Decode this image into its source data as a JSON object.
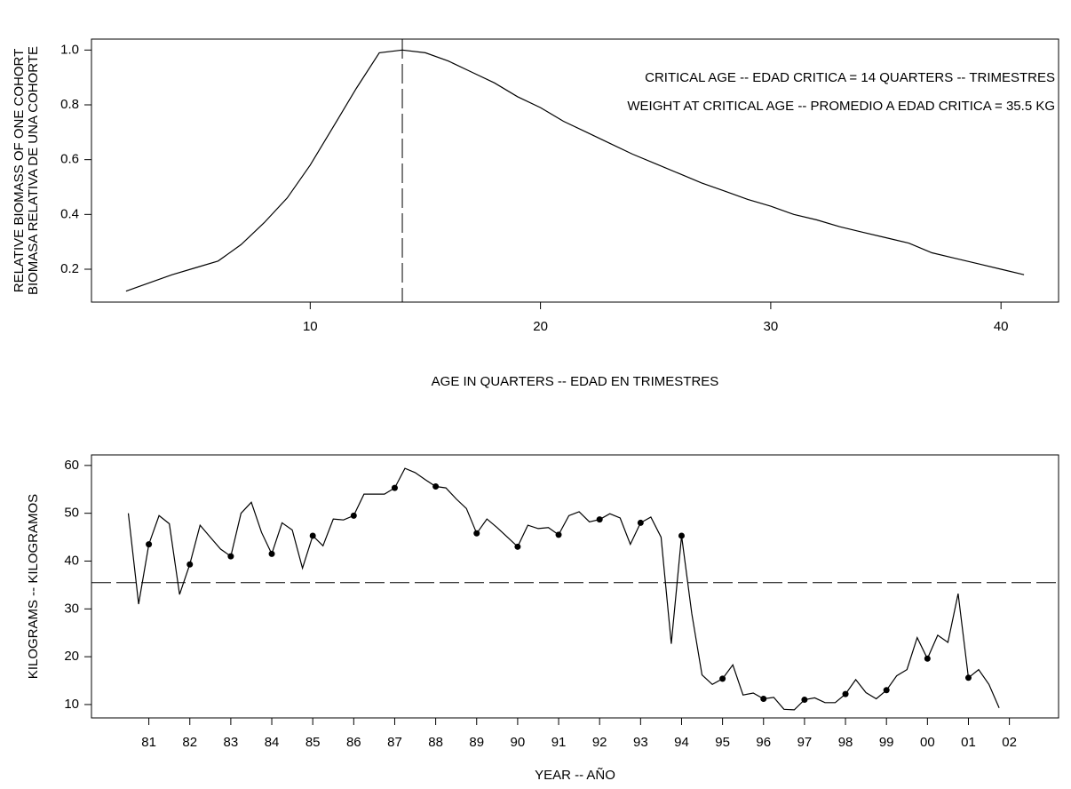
{
  "chart_data": [
    {
      "type": "line",
      "ylabel": [
        "RELATIVE BIOMASS OF ONE COHORT",
        "BIOMASA RELATIVA DE UNA COHORTE"
      ],
      "xlabel": "AGE IN QUARTERS -- EDAD EN TRIMESTRES",
      "annotations": [
        "CRITICAL AGE -- EDAD CRITICA = 14 QUARTERS -- TRIMESTRES",
        "WEIGHT AT CRITICAL AGE -- PROMEDIO A EDAD CRITICA = 35.5 KG"
      ],
      "xlim": [
        0.5,
        42.5
      ],
      "ylim": [
        0.08,
        1.04
      ],
      "xticks": [
        10,
        20,
        30,
        40
      ],
      "yticks": [
        0.2,
        0.4,
        0.6,
        0.8,
        {
          "value": 1,
          "label": "1.0"
        }
      ],
      "vline": 14,
      "color": "#000000",
      "series": [
        {
          "color": "#000000",
          "x": [
            2,
            3,
            4,
            5,
            6,
            7,
            8,
            9,
            10,
            11,
            12,
            13,
            14,
            15,
            16,
            17,
            18,
            19,
            20,
            21,
            22,
            23,
            24,
            25,
            26,
            27,
            28,
            29,
            30,
            31,
            32,
            33,
            34,
            35,
            36,
            37,
            38,
            39,
            40,
            41
          ],
          "values": [
            0.12,
            0.15,
            0.18,
            0.205,
            0.23,
            0.29,
            0.37,
            0.46,
            0.58,
            0.72,
            0.86,
            0.99,
            1.0,
            0.99,
            0.96,
            0.92,
            0.88,
            0.83,
            0.79,
            0.74,
            0.7,
            0.66,
            0.62,
            0.585,
            0.55,
            0.515,
            0.485,
            0.455,
            0.43,
            0.4,
            0.38,
            0.355,
            0.335,
            0.315,
            0.295,
            0.26,
            0.24,
            0.22,
            0.2,
            0.18
          ]
        }
      ]
    },
    {
      "type": "line",
      "ylabel": [
        "KILOGRAMS -- KILOGRAMOS"
      ],
      "xlabel": "YEAR -- AÑO",
      "xlim": [
        1979.6,
        2003.2
      ],
      "ylim": [
        7.2,
        62.2
      ],
      "xticks": [
        {
          "value": 1981,
          "label": "81"
        },
        {
          "value": 1982,
          "label": "82"
        },
        {
          "value": 1983,
          "label": "83"
        },
        {
          "value": 1984,
          "label": "84"
        },
        {
          "value": 1985,
          "label": "85"
        },
        {
          "value": 1986,
          "label": "86"
        },
        {
          "value": 1987,
          "label": "87"
        },
        {
          "value": 1988,
          "label": "88"
        },
        {
          "value": 1989,
          "label": "89"
        },
        {
          "value": 1990,
          "label": "90"
        },
        {
          "value": 1991,
          "label": "91"
        },
        {
          "value": 1992,
          "label": "92"
        },
        {
          "value": 1993,
          "label": "93"
        },
        {
          "value": 1994,
          "label": "94"
        },
        {
          "value": 1995,
          "label": "95"
        },
        {
          "value": 1996,
          "label": "96"
        },
        {
          "value": 1997,
          "label": "97"
        },
        {
          "value": 1998,
          "label": "98"
        },
        {
          "value": 1999,
          "label": "99"
        },
        {
          "value": 2000,
          "label": "00"
        },
        {
          "value": 2001,
          "label": "01"
        },
        {
          "value": 2002,
          "label": "02"
        }
      ],
      "yticks": [
        10,
        20,
        30,
        40,
        50,
        60
      ],
      "hline": 35.5,
      "series": [
        {
          "color": "#000000",
          "style": "line",
          "x": [
            1980.5,
            1980.75,
            1981,
            1981.25,
            1981.5,
            1981.75,
            1982,
            1982.25,
            1982.5,
            1982.75,
            1983,
            1983.25,
            1983.5,
            1983.75,
            1984,
            1984.25,
            1984.5,
            1984.75,
            1985,
            1985.25,
            1985.5,
            1985.75,
            1986,
            1986.25,
            1986.5,
            1986.75,
            1987,
            1987.25,
            1987.5,
            1987.75,
            1988,
            1988.25,
            1988.5,
            1988.75,
            1989,
            1989.25,
            1989.5,
            1989.75,
            1990,
            1990.25,
            1990.5,
            1990.75,
            1991,
            1991.25,
            1991.5,
            1991.75,
            1992,
            1992.25,
            1992.5,
            1992.75,
            1993,
            1993.25,
            1993.5,
            1993.75,
            1994,
            1994.25,
            1994.5,
            1994.75,
            1995,
            1995.25,
            1995.5,
            1995.75,
            1996,
            1996.25,
            1996.5,
            1996.75,
            1997,
            1997.25,
            1997.5,
            1997.75,
            1998,
            1998.25,
            1998.5,
            1998.75,
            1999,
            1999.25,
            1999.5,
            1999.75,
            2000,
            2000.25,
            2000.5,
            2000.75,
            2001,
            2001.25,
            2001.5,
            2001.75
          ],
          "values": [
            50,
            31,
            43.5,
            49.5,
            47.8,
            33,
            39.3,
            47.5,
            45,
            42.5,
            41,
            50,
            52.3,
            46,
            41.5,
            48,
            46.5,
            38.5,
            45.3,
            43.2,
            48.8,
            48.6,
            49.5,
            54,
            54,
            54,
            55.3,
            59.4,
            58.5,
            57,
            55.6,
            55.3,
            53,
            51,
            45.8,
            48.8,
            47,
            45,
            43,
            47.5,
            46.8,
            47,
            45.5,
            49.5,
            50.3,
            48.2,
            48.7,
            49.9,
            49,
            43.5,
            48,
            49.2,
            45,
            22.7,
            45.3,
            29,
            16.2,
            14.2,
            15.4,
            18.3,
            12,
            12.4,
            11.2,
            11.5,
            9,
            8.9,
            11,
            11.4,
            10.4,
            10.4,
            12.2,
            15.2,
            12.5,
            11.2,
            13,
            16,
            17.3,
            24,
            19.6,
            24.5,
            23,
            33.2,
            15.6,
            17.3,
            14.2,
            9.3
          ]
        },
        {
          "color": "#000000",
          "style": "points",
          "x": [
            1981,
            1982,
            1983,
            1984,
            1985,
            1986,
            1987,
            1988,
            1989,
            1990,
            1991,
            1992,
            1993,
            1994,
            1995,
            1996,
            1997,
            1998,
            1999,
            2000,
            2001
          ],
          "values": [
            43.5,
            39.3,
            41,
            41.5,
            45.3,
            49.5,
            55.3,
            55.6,
            45.8,
            43,
            45.5,
            48.7,
            48,
            45.3,
            15.4,
            11.2,
            11,
            12.2,
            13,
            19.6,
            15.6
          ]
        }
      ]
    }
  ]
}
